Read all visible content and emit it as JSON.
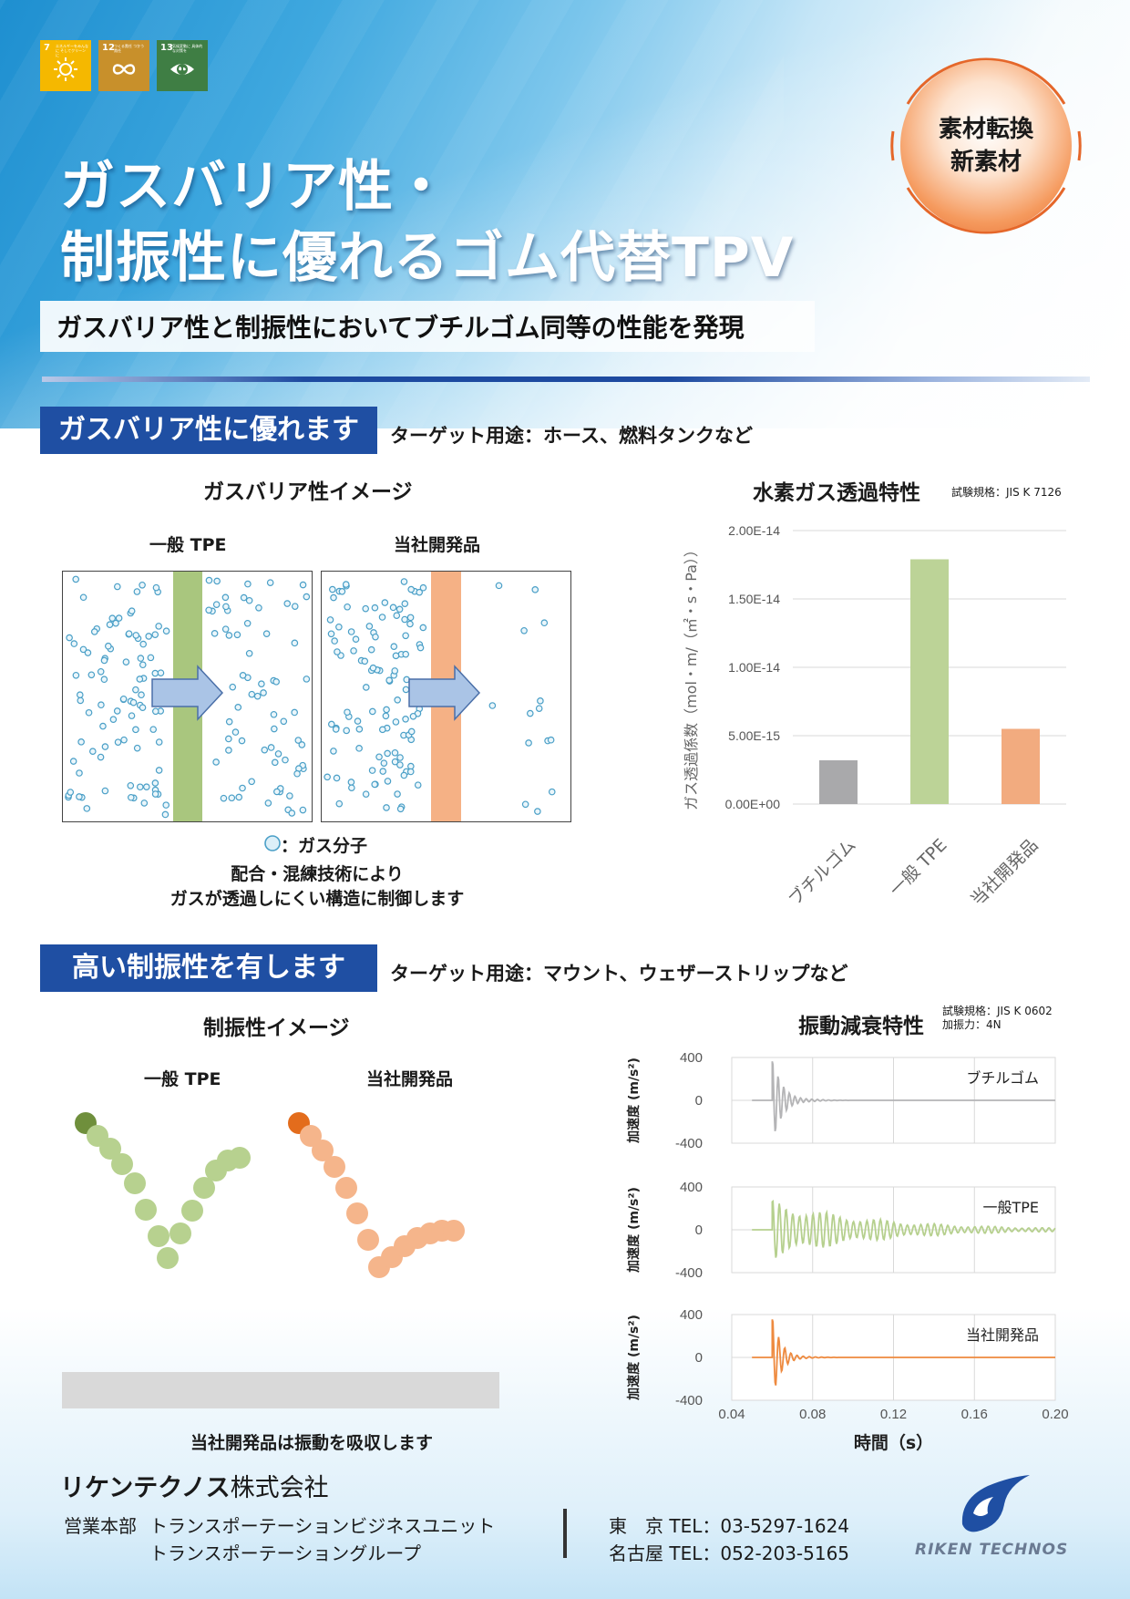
{
  "sdg": [
    {
      "num": "7",
      "text": "エネルギーをみんなに そしてクリーンに",
      "color": "#f5b800"
    },
    {
      "num": "12",
      "text": "つくる責任 つかう責任",
      "color": "#c8902b"
    },
    {
      "num": "13",
      "text": "気候変動に 具体的な対策を",
      "color": "#3f7e44"
    }
  ],
  "badge": {
    "line1": "素材転換",
    "line2": "新素材"
  },
  "title": {
    "line1": "ガスバリア性・",
    "line2": "制振性に優れるゴム代替TPV"
  },
  "subtitle": "ガスバリア性と制振性においてブチルゴム同等の性能を発現",
  "section1": {
    "heading": "ガスバリア性に優れます",
    "target": "ターゲット用途：ホース、燃料タンクなど",
    "image_title": "ガスバリア性イメージ",
    "label_tpe": "一般 TPE",
    "label_ours": "当社開発品",
    "legend": "：ガス分子",
    "caption1": "配合・混練技術により",
    "caption2": "ガスが透過しにくい構造に制御します",
    "chart_title": "水素ガス透過特性",
    "chart_note": "試験規格：JIS K 7126"
  },
  "section2": {
    "heading": "高い制振性を有します",
    "target": "ターゲット用途：マウント、ウェザーストリップなど",
    "image_title": "制振性イメージ",
    "label_tpe": "一般 TPE",
    "label_ours": "当社開発品",
    "caption": "当社開発品は振動を吸収します",
    "chart_title": "振動減衰特性",
    "chart_note1": "試験規格：JIS K 0602",
    "chart_note2": "加振力：4N"
  },
  "chart_data": [
    {
      "type": "bar",
      "title": "水素ガス透過特性",
      "ylabel": "ガス透過係数（mol・m/（㎡・s・Pa））",
      "categories": [
        "ブチルゴム",
        "一般 TPE",
        "当社開発品"
      ],
      "values": [
        3.2e-15,
        1.79e-14,
        5.5e-15
      ],
      "colors": [
        "#a9a9ab",
        "#bcd397",
        "#f2ab7f"
      ],
      "ylim": [
        0,
        2e-14
      ],
      "yticks": [
        "0.00E+00",
        "5.00E-15",
        "1.00E-14",
        "1.50E-14",
        "2.00E-14"
      ],
      "grid": true
    },
    {
      "type": "line",
      "title": "振動減衰特性",
      "xlabel": "時間（s）",
      "ylabel": "加速度 (m/s²)",
      "xlim": [
        0.04,
        0.2
      ],
      "xticks": [
        "0.04",
        "0.08",
        "0.12",
        "0.16",
        "0.20"
      ],
      "ylim": [
        -400,
        400
      ],
      "yticks": [
        "400",
        "0",
        "-400"
      ],
      "onset": 0.06,
      "panels": [
        {
          "name": "ブチルゴム",
          "color": "#b4b4b6",
          "peak": 390,
          "decay_s": 0.006,
          "freq_hz": 360
        },
        {
          "name": "一般TPE",
          "color": "#b6d08e",
          "peak": 280,
          "decay_s": 0.05,
          "freq_hz": 300
        },
        {
          "name": "当社開発品",
          "color": "#ee8a3f",
          "peak": 380,
          "decay_s": 0.005,
          "freq_hz": 330
        }
      ]
    }
  ],
  "company": {
    "name_bold": "リケンテクノス",
    "name_rest": "株式会社"
  },
  "footer": {
    "dept": "営業本部",
    "unit1": "トランスポーテーションビジネスユニット",
    "unit2": "トランスポーテーショングループ",
    "tokyo": "東　京 TEL：03-5297-1624",
    "nagoya": "名古屋 TEL：052-203-5165",
    "logo": "RIKEN TECHNOS"
  }
}
